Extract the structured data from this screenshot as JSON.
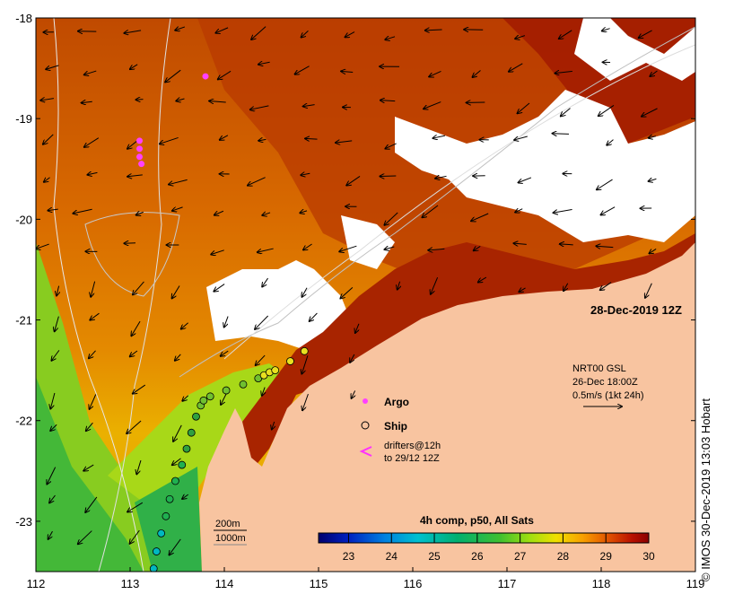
{
  "map": {
    "date_label": "28-Dec-2019 12Z",
    "credit": "© IMOS 30-Dec-2019 13:03 Hobart",
    "x_ticks": [
      "112",
      "113",
      "114",
      "115",
      "116",
      "117",
      "118",
      "119"
    ],
    "y_ticks": [
      "-18",
      "-19",
      "-20",
      "-21",
      "-22",
      "-23"
    ],
    "x_range": [
      112,
      119
    ],
    "y_range": [
      -23.5,
      -18
    ]
  },
  "legend": {
    "argo": "Argo",
    "ship": "Ship",
    "drifters_line1": "drifters@12h",
    "drifters_line2": "to 29/12 12Z"
  },
  "current_info": {
    "line1": "NRT00 GSL",
    "line2": "26-Dec 18:00Z",
    "line3": "0.5m/s (1kt 24h)"
  },
  "isobaths": {
    "label_200": "200m",
    "label_1000": "1000m"
  },
  "colorbar": {
    "title": "4h comp, p50, All Sats",
    "ticks": [
      "23",
      "24",
      "25",
      "26",
      "27",
      "28",
      "29",
      "30"
    ],
    "range": [
      22.3,
      30
    ],
    "colors": [
      "#00006e",
      "#0020c0",
      "#0080e0",
      "#00c0d0",
      "#00b070",
      "#40c030",
      "#a0e010",
      "#f0e000",
      "#f8a000",
      "#e05000",
      "#b81000",
      "#8a0000"
    ]
  },
  "ship_track": [
    {
      "lon": 113.25,
      "lat": -23.47
    },
    {
      "lon": 113.28,
      "lat": -23.3
    },
    {
      "lon": 113.33,
      "lat": -23.12
    },
    {
      "lon": 113.38,
      "lat": -22.95
    },
    {
      "lon": 113.42,
      "lat": -22.78
    },
    {
      "lon": 113.48,
      "lat": -22.6
    },
    {
      "lon": 113.55,
      "lat": -22.44
    },
    {
      "lon": 113.6,
      "lat": -22.28
    },
    {
      "lon": 113.65,
      "lat": -22.12
    },
    {
      "lon": 113.7,
      "lat": -21.96
    },
    {
      "lon": 113.75,
      "lat": -21.85
    },
    {
      "lon": 113.78,
      "lat": -21.8
    },
    {
      "lon": 113.85,
      "lat": -21.76
    },
    {
      "lon": 114.02,
      "lat": -21.7
    },
    {
      "lon": 114.2,
      "lat": -21.64
    },
    {
      "lon": 114.36,
      "lat": -21.58
    },
    {
      "lon": 114.42,
      "lat": -21.55
    },
    {
      "lon": 114.48,
      "lat": -21.52
    },
    {
      "lon": 114.54,
      "lat": -21.5
    },
    {
      "lon": 114.7,
      "lat": -21.41
    },
    {
      "lon": 114.85,
      "lat": -21.31
    }
  ],
  "argo_floats": [
    {
      "lon": 113.8,
      "lat": -18.58
    },
    {
      "lon": 113.1,
      "lat": -19.22
    },
    {
      "lon": 113.1,
      "lat": -19.3
    },
    {
      "lon": 113.1,
      "lat": -19.38
    },
    {
      "lon": 113.12,
      "lat": -19.45
    }
  ]
}
